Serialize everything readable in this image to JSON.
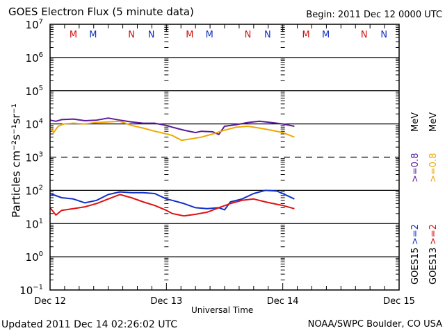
{
  "chart_data": {
    "type": "line",
    "title": "GOES Electron Flux (5 minute data)",
    "begin_label": "Begin: 2011 Dec 12 0000 UTC",
    "xlabel": "Universal Time",
    "ylabel": "Particles cm⁻²s⁻¹sr⁻¹",
    "yscale": "log",
    "ylim": [
      0.1,
      10000000
    ],
    "xlim": [
      0,
      3
    ],
    "x_unit": "days since 2011 Dec 12 00:00 UTC",
    "x_ticks": [
      {
        "value": 0,
        "label": "Dec 12"
      },
      {
        "value": 1,
        "label": "Dec 13"
      },
      {
        "value": 2,
        "label": "Dec 14"
      },
      {
        "value": 3,
        "label": "Dec 15"
      }
    ],
    "y_ticks": [
      {
        "exp": "7",
        "value": 10000000
      },
      {
        "exp": "6",
        "value": 1000000
      },
      {
        "exp": "5",
        "value": 100000
      },
      {
        "exp": "4",
        "value": 10000
      },
      {
        "exp": "3",
        "value": 1000
      },
      {
        "exp": "2",
        "value": 100
      },
      {
        "exp": "1",
        "value": 10
      },
      {
        "exp": "0",
        "value": 1
      },
      {
        "exp": "−1",
        "value": 0.1
      }
    ],
    "y_tick_base": "10",
    "threshold_lines": [
      {
        "value": 1000,
        "style": "dashed"
      }
    ],
    "grid": true,
    "markers": [
      {
        "label": "M",
        "day": 0.2,
        "color": "#d01010"
      },
      {
        "label": "M",
        "day": 0.37,
        "color": "#1030c0"
      },
      {
        "label": "N",
        "day": 0.7,
        "color": "#d01010"
      },
      {
        "label": "N",
        "day": 0.87,
        "color": "#1030c0"
      },
      {
        "label": "M",
        "day": 1.2,
        "color": "#d01010"
      },
      {
        "label": "M",
        "day": 1.37,
        "color": "#1030c0"
      },
      {
        "label": "N",
        "day": 1.7,
        "color": "#d01010"
      },
      {
        "label": "N",
        "day": 1.87,
        "color": "#1030c0"
      },
      {
        "label": "M",
        "day": 2.2,
        "color": "#d01010"
      },
      {
        "label": "M",
        "day": 2.37,
        "color": "#1030c0"
      },
      {
        "label": "N",
        "day": 2.7,
        "color": "#d01010"
      },
      {
        "label": "N",
        "day": 2.87,
        "color": "#1030c0"
      }
    ],
    "series": [
      {
        "name": "GOES15 >=0.8 MeV",
        "color": "#5a1a9a",
        "x": [
          0,
          0.05,
          0.1,
          0.2,
          0.3,
          0.4,
          0.5,
          0.6,
          0.7,
          0.8,
          0.9,
          1.0,
          1.05,
          1.15,
          1.25,
          1.3,
          1.4,
          1.45,
          1.5,
          1.6,
          1.7,
          1.8,
          1.9,
          2.0,
          2.1
        ],
        "y": [
          13000,
          12000,
          13500,
          14000,
          12500,
          13000,
          15000,
          13000,
          11500,
          10500,
          10500,
          9000,
          8000,
          6500,
          5500,
          6000,
          5800,
          4800,
          8500,
          9500,
          11000,
          12000,
          11000,
          10000,
          8500
        ]
      },
      {
        "name": "GOES13 >=0.8 MeV",
        "color": "#f0a800",
        "x": [
          0,
          0.03,
          0.07,
          0.12,
          0.2,
          0.3,
          0.4,
          0.5,
          0.6,
          0.7,
          0.8,
          0.9,
          1.0,
          1.05,
          1.13,
          1.2,
          1.3,
          1.4,
          1.5,
          1.6,
          1.7,
          1.8,
          1.9,
          2.0,
          2.1
        ],
        "y": [
          8000,
          5500,
          8500,
          10000,
          10500,
          10000,
          11000,
          11500,
          12000,
          9000,
          7500,
          6000,
          5000,
          4500,
          3200,
          3500,
          4000,
          5000,
          6500,
          8000,
          8500,
          7500,
          6500,
          5500,
          4000
        ]
      },
      {
        "name": "GOES15 >=2 MeV",
        "color": "#1030c8",
        "x": [
          0,
          0.1,
          0.2,
          0.3,
          0.4,
          0.5,
          0.6,
          0.7,
          0.8,
          0.9,
          1.0,
          1.05,
          1.15,
          1.25,
          1.35,
          1.45,
          1.5,
          1.55,
          1.65,
          1.75,
          1.85,
          1.95,
          2.0,
          2.1
        ],
        "y": [
          80,
          60,
          55,
          42,
          50,
          75,
          90,
          85,
          85,
          80,
          55,
          50,
          40,
          30,
          28,
          30,
          26,
          45,
          55,
          80,
          100,
          95,
          80,
          55
        ]
      },
      {
        "name": "GOES13 >=2 MeV",
        "color": "#e01010",
        "x": [
          0,
          0.05,
          0.1,
          0.2,
          0.3,
          0.4,
          0.5,
          0.6,
          0.7,
          0.8,
          0.9,
          1.0,
          1.05,
          1.15,
          1.25,
          1.35,
          1.45,
          1.55,
          1.65,
          1.75,
          1.85,
          1.95,
          2.0,
          2.1
        ],
        "y": [
          30,
          18,
          25,
          28,
          32,
          40,
          55,
          75,
          60,
          45,
          35,
          25,
          20,
          17,
          19,
          22,
          30,
          40,
          50,
          55,
          45,
          38,
          35,
          28
        ]
      }
    ],
    "legend": {
      "placement": "right",
      "columns": [
        {
          "satellite": "GOES15",
          "low": ">=2",
          "low_color": "#1030c8",
          "high": ">=0.8",
          "high_color": "#5a1a9a",
          "unit": "MeV"
        },
        {
          "satellite": "GOES13",
          "low": ">=2",
          "low_color": "#e01010",
          "high": ">=0.8",
          "high_color": "#f0a800",
          "unit": "MeV"
        }
      ]
    }
  },
  "footer": {
    "updated": "Updated 2011 Dec 14 02:26:02 UTC",
    "credit": "NOAA/SWPC Boulder, CO USA"
  }
}
